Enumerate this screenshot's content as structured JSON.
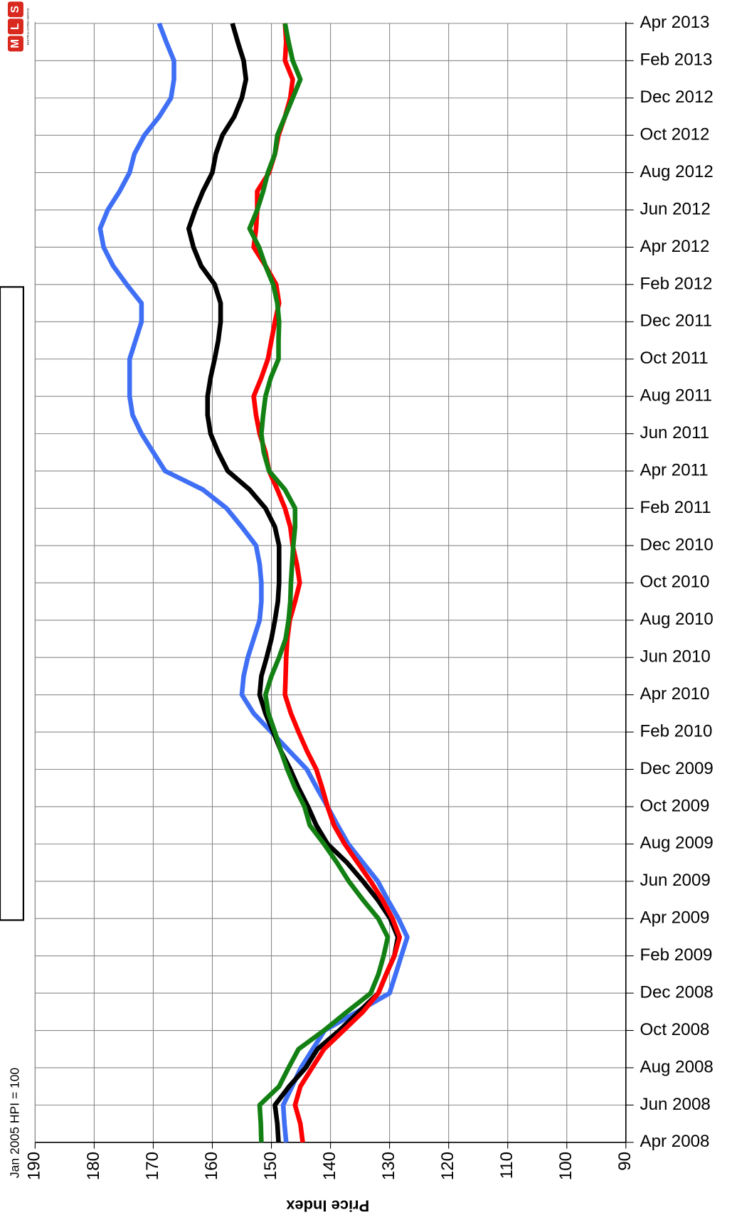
{
  "chart_data": {
    "type": "line",
    "orientation": "horizontal",
    "y_label": "Price Index",
    "note": "Jan 2005 HPI = 100",
    "logo": {
      "letters": [
        "M",
        "L",
        "S"
      ],
      "caption": "MULTIPLE LISTING SERVICE"
    },
    "categories": [
      "Apr 2008",
      null,
      "Jun 2008",
      null,
      "Aug 2008",
      null,
      "Oct 2008",
      null,
      "Dec 2008",
      null,
      "Feb 2009",
      null,
      "Apr 2009",
      null,
      "Jun 2009",
      null,
      "Aug 2009",
      null,
      "Oct 2009",
      null,
      "Dec 2009",
      null,
      "Feb 2010",
      null,
      "Apr 2010",
      null,
      "Jun 2010",
      null,
      "Aug 2010",
      null,
      "Oct 2010",
      null,
      "Dec 2010",
      null,
      "Feb 2011",
      null,
      "Apr 2011",
      null,
      "Jun 2011",
      null,
      "Aug 2011",
      null,
      "Oct 2011",
      null,
      "Dec 2011",
      null,
      "Feb 2012",
      null,
      "Apr 2012",
      null,
      "Jun 2012",
      null,
      "Aug 2012",
      null,
      "Oct 2012",
      null,
      "Dec 2012",
      null,
      "Feb 2013",
      null,
      "Apr 2013"
    ],
    "ylim": [
      190,
      90
    ],
    "yticks": [
      190,
      180,
      170,
      160,
      150,
      140,
      130,
      120,
      110,
      100,
      90
    ],
    "grid": true,
    "series": [
      {
        "color": "#3f6ff5",
        "values": [
          147.5,
          147.8,
          148,
          146.5,
          145,
          143,
          141,
          135.5,
          130,
          129,
          128,
          127,
          128.5,
          130.3,
          132,
          134.5,
          137,
          138.8,
          140.5,
          142.3,
          144,
          147,
          150,
          153,
          155,
          154.7,
          154,
          153,
          152,
          151.7,
          151.7,
          152,
          152.6,
          155,
          157.6,
          161.6,
          168,
          170,
          172,
          173.5,
          174,
          174,
          174,
          173,
          172,
          172,
          174.5,
          176.8,
          178.4,
          179,
          177.7,
          175.7,
          174,
          173.2,
          171.5,
          169,
          167,
          166.5,
          166.5,
          167.8,
          169
        ]
      },
      {
        "color": "#000000",
        "values": [
          148.8,
          149,
          149.4,
          147,
          144.2,
          142.2,
          138.5,
          135.2,
          131.9,
          130.6,
          129.2,
          128.6,
          129.9,
          132,
          134.5,
          137.2,
          140.5,
          142.4,
          143.8,
          145.4,
          146.8,
          148.4,
          149.7,
          151,
          152,
          151.7,
          150.8,
          150,
          149.4,
          148.9,
          148.7,
          148.7,
          148.7,
          149.4,
          151,
          153.7,
          157.4,
          159,
          160.3,
          160.8,
          160.8,
          160.3,
          159.6,
          159,
          158.6,
          158.6,
          159.6,
          161.9,
          163.2,
          164,
          162.9,
          161.6,
          160,
          159.4,
          158.3,
          156.3,
          155,
          154.3,
          154.7,
          155.7,
          156.6
        ]
      },
      {
        "color": "#ff0000",
        "values": [
          144.7,
          145.1,
          146,
          145.1,
          143.1,
          141.1,
          137.8,
          134.5,
          131.9,
          130.6,
          129.2,
          128.3,
          129.5,
          131.2,
          133.2,
          135.4,
          137.6,
          139.4,
          140.5,
          141.4,
          142.4,
          144,
          145.4,
          146.7,
          147.7,
          147.6,
          147.5,
          147.3,
          146.9,
          146,
          145.2,
          145.7,
          146.4,
          146.8,
          147.7,
          149,
          150.4,
          151,
          152,
          152.6,
          153,
          151.7,
          150.6,
          150,
          149.4,
          148.7,
          149.2,
          151,
          153,
          152.6,
          152.4,
          152.4,
          150.4,
          149.4,
          148.8,
          147.7,
          146.8,
          146.4,
          147.7,
          147.5,
          147.7
        ]
      },
      {
        "color": "#138013",
        "values": [
          151.7,
          151.8,
          152,
          148.7,
          147.1,
          145.4,
          141.1,
          137.2,
          133.2,
          131.9,
          131,
          130.3,
          131.9,
          134.5,
          136.9,
          138.9,
          141.1,
          143.5,
          144.4,
          146,
          147.3,
          148.4,
          149.4,
          150.5,
          151,
          150,
          148.7,
          147.6,
          147.1,
          146.8,
          146.7,
          146.5,
          146.3,
          146,
          146,
          147.7,
          150.4,
          151.3,
          151.7,
          151.4,
          151,
          150.1,
          148.8,
          148.8,
          148.7,
          149,
          149.7,
          151,
          152.1,
          153.7,
          152.4,
          151.4,
          150.6,
          149.4,
          149,
          147.7,
          146.4,
          145.1,
          146.4,
          147.1,
          147.7
        ]
      }
    ]
  }
}
